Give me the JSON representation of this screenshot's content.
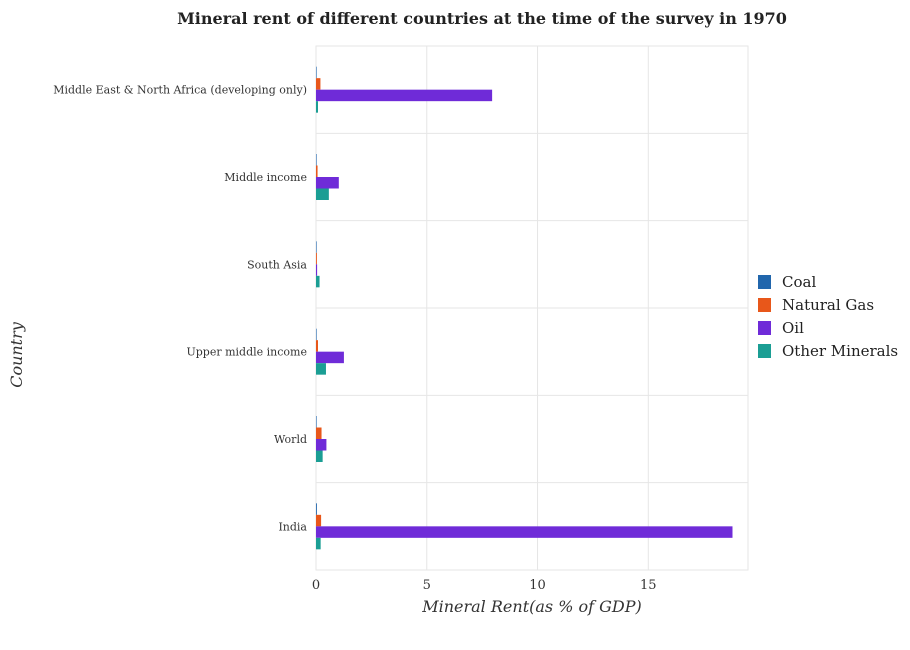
{
  "chart_data": {
    "type": "bar",
    "orientation": "horizontal",
    "title": "Mineral rent of different countries at the time of the survey in 1970",
    "xlabel": "Mineral Rent(as % of GDP)",
    "ylabel": "Country",
    "xlim": [
      0,
      19.5
    ],
    "xticks": [
      0,
      5,
      10,
      15
    ],
    "grid": true,
    "legend_position": "right",
    "categories": [
      "Middle East & North Africa (developing only)",
      "Middle income",
      "South Asia",
      "Upper middle income",
      "World",
      "India"
    ],
    "series": [
      {
        "name": "Coal",
        "color": "#2166ac",
        "values": [
          0.01,
          0.01,
          0.02,
          0.01,
          0.01,
          0.04
        ]
      },
      {
        "name": "Natural Gas",
        "color": "#e8571a",
        "values": [
          0.2,
          0.07,
          0.04,
          0.09,
          0.25,
          0.23
        ]
      },
      {
        "name": "Oil",
        "color": "#6f2bd8",
        "values": [
          7.95,
          1.03,
          0.05,
          1.26,
          0.47,
          18.8
        ]
      },
      {
        "name": "Other Minerals",
        "color": "#1b9e94",
        "values": [
          0.09,
          0.58,
          0.16,
          0.45,
          0.3,
          0.21
        ]
      }
    ]
  }
}
